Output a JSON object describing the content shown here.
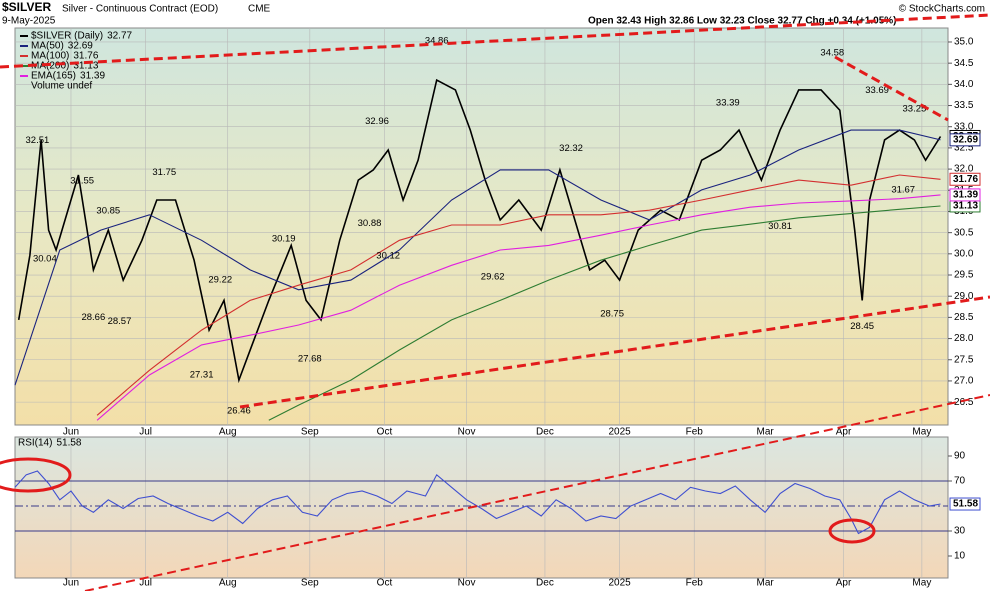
{
  "header": {
    "symbol": "$SILVER",
    "title": "Silver - Continuous Contract (EOD)",
    "exchange": "CME",
    "date": "9-May-2025",
    "quote": "Open 32.43 High 32.86 Low 32.23 Close 32.77 Chg +0.34 (+1.05%)",
    "credit": "© StockCharts.com"
  },
  "chart_data": [
    {
      "type": "line",
      "grid": true,
      "legend": "top-left",
      "xlim": [
        0,
        250
      ],
      "xticks": [
        {
          "value": 15,
          "label": "Jun"
        },
        {
          "value": 35,
          "label": "Jul"
        },
        {
          "value": 57,
          "label": "Aug"
        },
        {
          "value": 79,
          "label": "Sep"
        },
        {
          "value": 99,
          "label": "Oct"
        },
        {
          "value": 121,
          "label": "Nov"
        },
        {
          "value": 142,
          "label": "Dec"
        },
        {
          "value": 162,
          "label": "2025"
        },
        {
          "value": 182,
          "label": "Feb"
        },
        {
          "value": 201,
          "label": "Mar"
        },
        {
          "value": 222,
          "label": "Apr"
        },
        {
          "value": 243,
          "label": "May"
        }
      ],
      "ylim": [
        25.96,
        35.33
      ],
      "yticks": [
        26.5,
        {
          "value": 27,
          "label": "27.0"
        },
        27.5,
        {
          "value": 28,
          "label": "28.0"
        },
        28.5,
        {
          "value": 29,
          "label": "29.0"
        },
        29.5,
        {
          "value": 30,
          "label": "30.0"
        },
        30.5,
        {
          "value": 31,
          "label": "31.0"
        },
        31.5,
        {
          "value": 32,
          "label": "32.0"
        },
        32.5,
        {
          "value": 33,
          "label": "33.0"
        },
        33.5,
        {
          "value": 34,
          "label": "34.0"
        },
        34.5,
        {
          "value": 35,
          "label": "35.0"
        }
      ],
      "series": [
        {
          "name": "$SILVER (Daily)",
          "color": "#000000",
          "x": [
            1,
            4,
            7,
            9,
            11,
            17,
            21,
            25,
            29,
            34,
            38,
            43,
            48,
            52,
            56,
            60,
            64,
            68,
            74,
            78,
            82,
            87,
            92,
            96,
            100,
            104,
            108,
            113,
            118,
            122,
            126,
            130,
            135,
            141,
            146,
            150,
            154,
            158,
            162,
            167,
            173,
            178,
            184,
            189,
            194,
            200,
            205,
            210,
            216,
            221,
            225,
            227,
            229,
            233,
            237,
            241,
            244,
            248
          ],
          "values": [
            28.44,
            29.97,
            32.69,
            30.56,
            30.09,
            31.86,
            29.62,
            30.56,
            29.38,
            30.32,
            31.27,
            31.27,
            29.85,
            28.2,
            28.9,
            27.02,
            27.96,
            28.9,
            30.2,
            28.9,
            28.44,
            30.32,
            31.74,
            31.98,
            32.45,
            31.27,
            32.21,
            34.1,
            33.87,
            32.92,
            31.74,
            30.8,
            31.27,
            30.56,
            31.98,
            30.8,
            29.62,
            29.85,
            29.38,
            30.56,
            31.03,
            30.8,
            32.21,
            32.45,
            32.92,
            31.74,
            32.92,
            33.87,
            33.87,
            33.39,
            30.56,
            28.9,
            31.27,
            32.69,
            32.92,
            32.69,
            32.21,
            32.77
          ]
        },
        {
          "name": "MA(50)",
          "color": "#1a237e",
          "x": [
            0,
            12,
            23,
            36,
            50,
            63,
            76,
            90,
            103,
            117,
            130,
            143,
            157,
            170,
            184,
            197,
            210,
            224,
            237,
            248
          ],
          "values": [
            26.9,
            30.09,
            30.56,
            30.92,
            30.32,
            29.62,
            29.15,
            29.38,
            30.09,
            31.27,
            31.98,
            31.98,
            31.27,
            30.8,
            31.51,
            31.86,
            32.45,
            32.92,
            32.92,
            32.69
          ]
        },
        {
          "name": "MA(100)",
          "color": "#d32f2f",
          "x": [
            22,
            36,
            50,
            63,
            76,
            90,
            103,
            117,
            130,
            143,
            157,
            170,
            184,
            197,
            210,
            224,
            237,
            248
          ],
          "values": [
            26.19,
            27.25,
            28.2,
            28.9,
            29.26,
            29.62,
            30.32,
            30.68,
            30.68,
            30.92,
            30.92,
            31.03,
            31.27,
            31.51,
            31.74,
            31.62,
            31.86,
            31.76
          ]
        },
        {
          "name": "MA(200)",
          "color": "#2e7d32",
          "x": [
            68,
            76,
            90,
            103,
            117,
            130,
            143,
            157,
            170,
            184,
            197,
            210,
            224,
            237,
            248
          ],
          "values": [
            26.07,
            26.43,
            27.02,
            27.73,
            28.44,
            28.9,
            29.38,
            29.85,
            30.2,
            30.56,
            30.7,
            30.85,
            30.95,
            31.05,
            31.13
          ]
        },
        {
          "name": "EMA(165)",
          "color": "#e020e0",
          "x": [
            22,
            36,
            50,
            63,
            76,
            90,
            103,
            117,
            130,
            143,
            157,
            170,
            184,
            197,
            210,
            224,
            237,
            248
          ],
          "values": [
            26.07,
            27.14,
            27.85,
            28.08,
            28.32,
            28.67,
            29.26,
            29.73,
            30.09,
            30.2,
            30.44,
            30.68,
            30.92,
            31.1,
            31.2,
            31.25,
            31.3,
            31.39
          ]
        }
      ],
      "extra_legend": "Volume undef",
      "annotations": [
        {
          "x": 6,
          "value": 32.51
        },
        {
          "x": 8,
          "value": 30.04
        },
        {
          "x": 18,
          "value": 31.55
        },
        {
          "x": 21,
          "value": 28.66
        },
        {
          "x": 25,
          "value": 30.85
        },
        {
          "x": 28,
          "value": 28.57
        },
        {
          "x": 40,
          "value": 31.75
        },
        {
          "x": 50,
          "value": 27.31
        },
        {
          "x": 55,
          "value": 29.22
        },
        {
          "x": 60,
          "value": 26.46
        },
        {
          "x": 72,
          "value": 30.19
        },
        {
          "x": 79,
          "value": 27.68
        },
        {
          "x": 95,
          "value": 30.88
        },
        {
          "x": 97,
          "value": 32.96
        },
        {
          "x": 100,
          "value": 30.12
        },
        {
          "x": 113,
          "value": 34.86
        },
        {
          "x": 128,
          "value": 29.62
        },
        {
          "x": 149,
          "value": 32.32
        },
        {
          "x": 160,
          "value": 28.75
        },
        {
          "x": 191,
          "value": 33.39
        },
        {
          "x": 205,
          "value": 30.81
        },
        {
          "x": 219,
          "value": 34.58
        },
        {
          "x": 227,
          "value": 28.45
        },
        {
          "x": 231,
          "value": 33.69
        },
        {
          "x": 238,
          "value": 31.67
        },
        {
          "x": 241,
          "value": 33.25
        }
      ]
    },
    {
      "type": "line",
      "grid": true,
      "title": "RSI(14)",
      "xlim": [
        0,
        250
      ],
      "xticks": [
        {
          "value": 15,
          "label": "Jun"
        },
        {
          "value": 35,
          "label": "Jul"
        },
        {
          "value": 57,
          "label": "Aug"
        },
        {
          "value": 79,
          "label": "Sep"
        },
        {
          "value": 99,
          "label": "Oct"
        },
        {
          "value": 121,
          "label": "Nov"
        },
        {
          "value": 142,
          "label": "Dec"
        },
        {
          "value": 162,
          "label": "2025"
        },
        {
          "value": 182,
          "label": "Feb"
        },
        {
          "value": 201,
          "label": "Mar"
        },
        {
          "value": 222,
          "label": "Apr"
        },
        {
          "value": 243,
          "label": "May"
        }
      ],
      "ylim": [
        -7.6,
        105.2
      ],
      "yticks": [
        10,
        30,
        70,
        90
      ],
      "reference_lines": [
        30,
        50,
        70
      ],
      "series": [
        {
          "name": "RSI(14)",
          "color": "#3f4fd0",
          "x": [
            0,
            3,
            6,
            9,
            12,
            15,
            18,
            21,
            25,
            29,
            33,
            37,
            41,
            45,
            49,
            53,
            57,
            61,
            65,
            69,
            73,
            77,
            81,
            85,
            89,
            93,
            97,
            101,
            105,
            110,
            113,
            117,
            121,
            125,
            129,
            133,
            137,
            141,
            145,
            149,
            153,
            157,
            161,
            165,
            169,
            173,
            177,
            181,
            185,
            189,
            193,
            197,
            201,
            205,
            209,
            213,
            217,
            221,
            224,
            226,
            229,
            233,
            237,
            241,
            245,
            248
          ],
          "values": [
            65,
            75,
            78,
            68,
            55,
            62,
            50,
            45,
            55,
            48,
            56,
            58,
            52,
            47,
            42,
            38,
            45,
            36,
            48,
            55,
            58,
            45,
            42,
            55,
            60,
            62,
            58,
            52,
            62,
            58,
            75,
            65,
            55,
            48,
            40,
            45,
            50,
            42,
            55,
            48,
            38,
            42,
            40,
            50,
            55,
            60,
            55,
            65,
            62,
            60,
            66,
            55,
            45,
            60,
            68,
            64,
            58,
            55,
            40,
            28,
            33,
            55,
            62,
            55,
            50,
            51.58
          ]
        }
      ]
    }
  ]
}
